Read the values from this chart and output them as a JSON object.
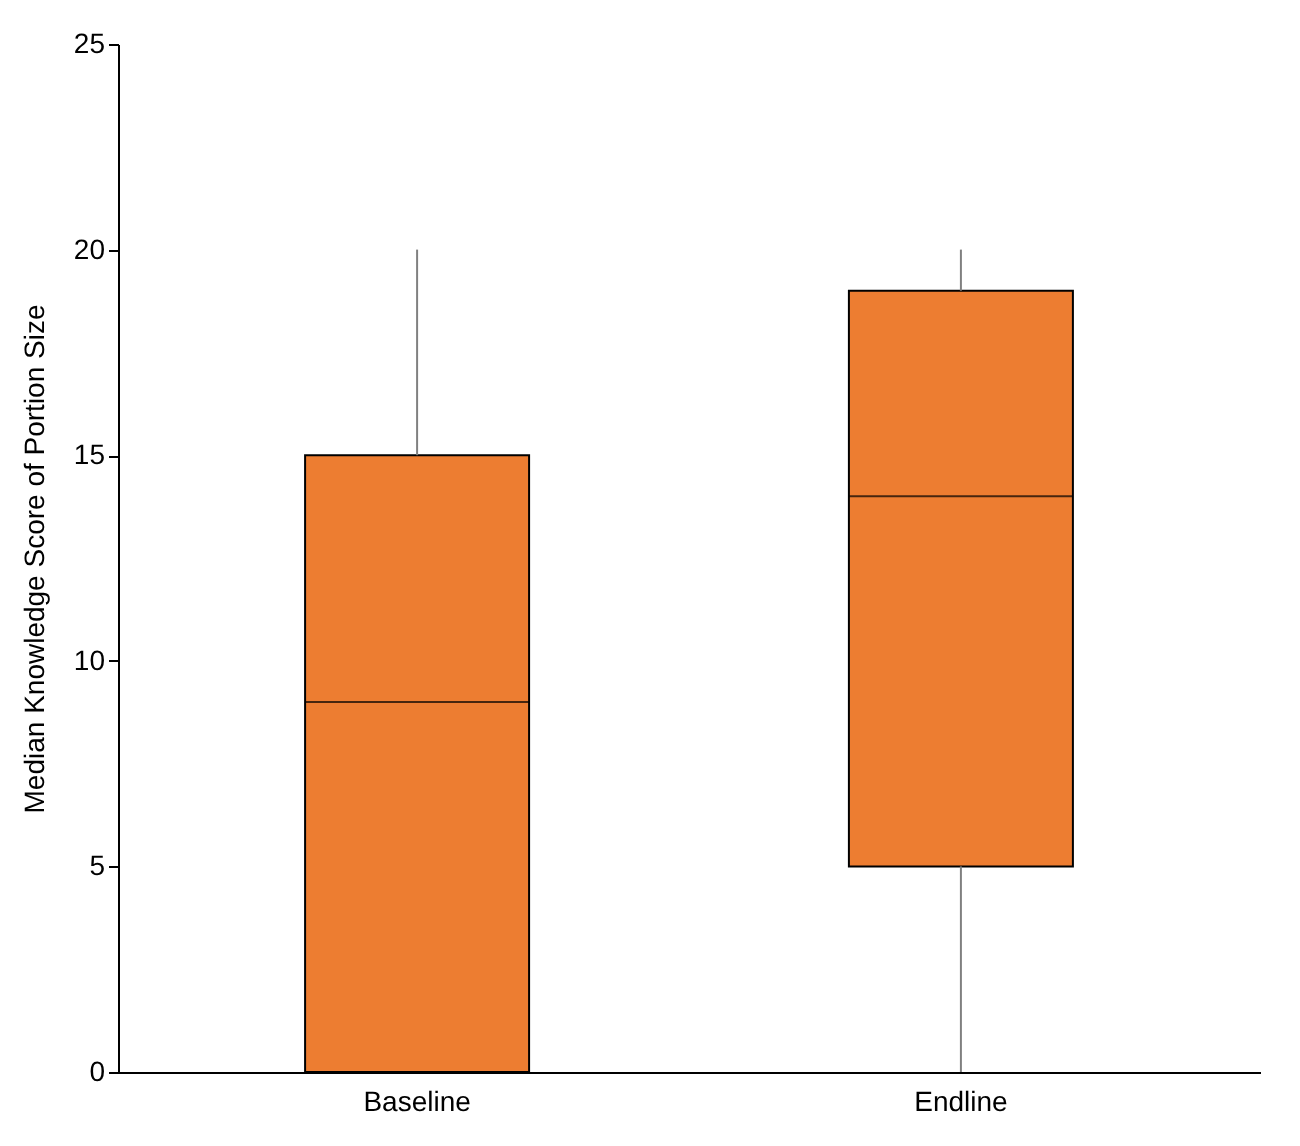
{
  "chart_data": {
    "type": "box",
    "ylabel": "Median Knowledge Score of Portion Size",
    "categories": [
      "Baseline",
      "Endline"
    ],
    "series": [
      {
        "color": "#ed7d31",
        "boxes": [
          {
            "low": 0,
            "q1": 0,
            "median": 9,
            "q3": 15,
            "high": 20
          },
          {
            "low": 0,
            "q1": 5,
            "median": 14,
            "q3": 19,
            "high": 20
          }
        ]
      }
    ],
    "ylim": [
      0,
      25
    ],
    "yticks": [
      0,
      5,
      10,
      15,
      20,
      25
    ],
    "grid": false,
    "legend": false
  }
}
